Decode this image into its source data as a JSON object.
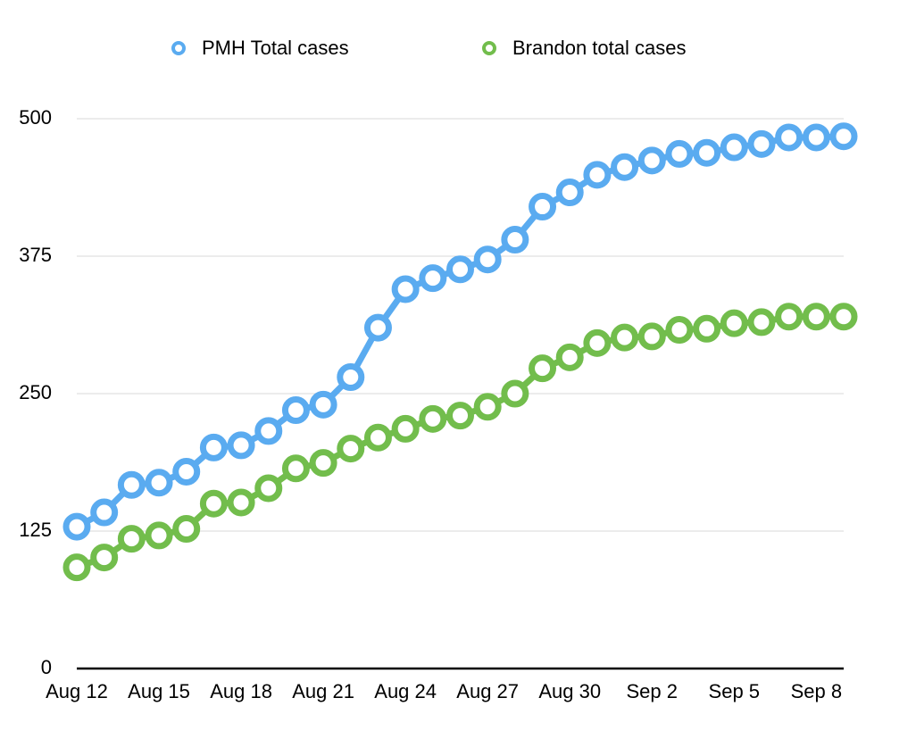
{
  "chart_data": {
    "type": "line",
    "categories": [
      "Aug 12",
      null,
      null,
      "Aug 15",
      null,
      null,
      "Aug 18",
      null,
      null,
      "Aug 21",
      null,
      null,
      "Aug 24",
      null,
      null,
      "Aug 27",
      null,
      null,
      "Aug 30",
      null,
      null,
      "Sep 2",
      null,
      null,
      "Sep 5",
      null,
      null,
      "Sep 8",
      null
    ],
    "series": [
      {
        "name": "PMH Total cases",
        "color": "#5aabf0",
        "values": [
          129,
          142,
          167,
          169,
          179,
          201,
          203,
          216,
          235,
          240,
          265,
          310,
          345,
          355,
          363,
          372,
          390,
          420,
          433,
          449,
          456,
          462,
          468,
          469,
          474,
          477,
          483,
          483,
          484
        ]
      },
      {
        "name": "Brandon total cases",
        "color": "#72bd4c",
        "values": [
          92,
          101,
          118,
          121,
          127,
          150,
          151,
          164,
          182,
          187,
          200,
          210,
          218,
          227,
          230,
          238,
          250,
          273,
          283,
          296,
          301,
          302,
          308,
          309,
          314,
          315,
          320,
          320,
          320
        ]
      }
    ],
    "ylim": [
      0,
      500
    ],
    "yticks": [
      0,
      125,
      250,
      375,
      500
    ],
    "grid": true,
    "legend": "top"
  }
}
